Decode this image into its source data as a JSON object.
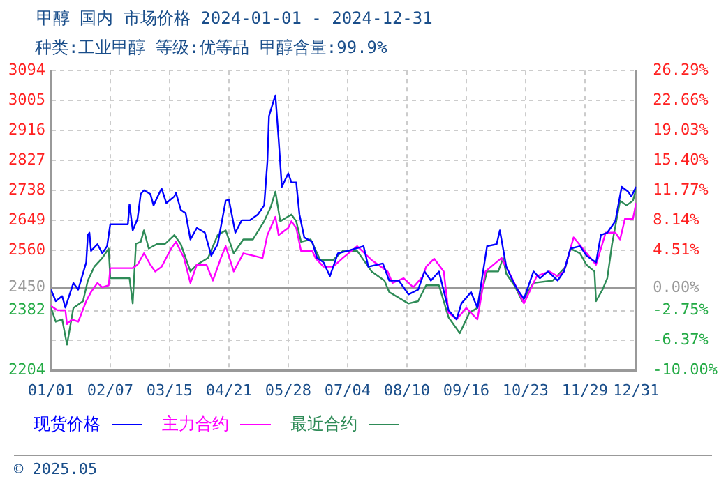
{
  "chart_data": {
    "type": "line",
    "title": "甲醇 国内 市场价格 2024-01-01 - 2024-12-31",
    "subtitle": "种类:工业甲醇 等级:优等品 甲醇含量:99.9%",
    "annotations": [
      "© 2025.05"
    ],
    "xlim": [
      "2024-01-01",
      "2024-12-31"
    ],
    "xticks": [
      {
        "value": "2024-01-01",
        "label": "01/01"
      },
      {
        "value": "2024-02-07",
        "label": "02/07"
      },
      {
        "value": "2024-03-15",
        "label": "03/15"
      },
      {
        "value": "2024-04-21",
        "label": "04/21"
      },
      {
        "value": "2024-05-28",
        "label": "05/28"
      },
      {
        "value": "2024-07-04",
        "label": "07/04"
      },
      {
        "value": "2024-08-10",
        "label": "08/10"
      },
      {
        "value": "2024-09-16",
        "label": "09/16"
      },
      {
        "value": "2024-10-23",
        "label": "10/23"
      },
      {
        "value": "2024-11-29",
        "label": "11/29"
      },
      {
        "value": "2024-12-31",
        "label": "12/31"
      }
    ],
    "ylim": [
      2204,
      3094
    ],
    "yticks": [
      2204,
      {
        "value": 2294,
        "label": null
      },
      2382,
      2450,
      2560,
      2649,
      2738,
      2827,
      2916,
      3005,
      3094
    ],
    "y2lim": [
      -10,
      26.29
    ],
    "y2ticks": [
      {
        "value": -10,
        "label": "-10.00%"
      },
      {
        "value": -6.37,
        "label": "-6.37%"
      },
      {
        "value": -2.75,
        "label": "-2.75%"
      },
      {
        "value": 0,
        "label": "0.00%"
      },
      {
        "value": 4.51,
        "label": "4.51%"
      },
      {
        "value": 8.14,
        "label": "8.14%"
      },
      {
        "value": 11.77,
        "label": "11.77%"
      },
      {
        "value": 15.4,
        "label": "15.40%"
      },
      {
        "value": 19.03,
        "label": "19.03%"
      },
      {
        "value": 22.66,
        "label": "22.66%"
      },
      {
        "value": 26.29,
        "label": "26.29%"
      }
    ],
    "ref_lines": [
      {
        "axis": "y",
        "value": 2450,
        "color": "#999999"
      }
    ],
    "grid": true,
    "legend": "bottom",
    "marker": "none",
    "series": [
      {
        "name": "现货价格",
        "color": "#0000ff",
        "x": [
          "2024-01-01",
          "2024-01-04",
          "2024-01-08",
          "2024-01-10",
          "2024-01-15",
          "2024-01-18",
          "2024-01-23",
          "2024-01-24",
          "2024-01-25",
          "2024-01-26",
          "2024-01-30",
          "2024-02-02",
          "2024-02-05",
          "2024-02-07",
          "2024-02-18",
          "2024-02-19",
          "2024-02-21",
          "2024-02-24",
          "2024-02-26",
          "2024-02-28",
          "2024-03-03",
          "2024-03-05",
          "2024-03-07",
          "2024-03-10",
          "2024-03-13",
          "2024-03-18",
          "2024-03-19",
          "2024-03-22",
          "2024-03-25",
          "2024-03-28",
          "2024-04-01",
          "2024-04-06",
          "2024-04-10",
          "2024-04-14",
          "2024-04-19",
          "2024-04-21",
          "2024-04-25",
          "2024-04-29",
          "2024-05-04",
          "2024-05-09",
          "2024-05-13",
          "2024-05-15",
          "2024-05-16",
          "2024-05-19",
          "2024-05-20",
          "2024-05-22",
          "2024-05-24",
          "2024-05-28",
          "2024-05-30",
          "2024-06-02",
          "2024-06-04",
          "2024-06-07",
          "2024-06-12",
          "2024-06-15",
          "2024-06-19",
          "2024-06-23",
          "2024-06-28",
          "2024-07-04",
          "2024-07-14",
          "2024-07-17",
          "2024-07-26",
          "2024-07-30",
          "2024-08-05",
          "2024-08-11",
          "2024-08-17",
          "2024-08-21",
          "2024-08-25",
          "2024-08-30",
          "2024-09-05",
          "2024-09-10",
          "2024-09-13",
          "2024-09-19",
          "2024-09-23",
          "2024-09-29",
          "2024-10-05",
          "2024-10-07",
          "2024-10-11",
          "2024-10-15",
          "2024-10-18",
          "2024-10-22",
          "2024-10-28",
          "2024-11-01",
          "2024-11-06",
          "2024-11-12",
          "2024-11-16",
          "2024-11-20",
          "2024-11-26",
          "2024-11-30",
          "2024-12-06",
          "2024-12-09",
          "2024-12-13",
          "2024-12-18",
          "2024-12-22",
          "2024-12-26",
          "2024-12-28",
          "2024-12-31"
        ],
        "values": [
          2444,
          2410,
          2425,
          2391,
          2464,
          2444,
          2525,
          2606,
          2613,
          2559,
          2579,
          2552,
          2573,
          2638,
          2638,
          2697,
          2620,
          2654,
          2728,
          2739,
          2728,
          2694,
          2715,
          2744,
          2701,
          2721,
          2731,
          2681,
          2671,
          2593,
          2627,
          2613,
          2545,
          2579,
          2708,
          2711,
          2613,
          2650,
          2650,
          2667,
          2694,
          2823,
          2959,
          3006,
          3020,
          2891,
          2749,
          2789,
          2762,
          2762,
          2667,
          2599,
          2586,
          2538,
          2525,
          2484,
          2552,
          2559,
          2573,
          2512,
          2522,
          2471,
          2471,
          2430,
          2444,
          2498,
          2471,
          2498,
          2383,
          2356,
          2403,
          2437,
          2390,
          2573,
          2579,
          2620,
          2512,
          2471,
          2444,
          2417,
          2498,
          2478,
          2498,
          2471,
          2498,
          2566,
          2573,
          2545,
          2525,
          2606,
          2613,
          2647,
          2749,
          2735,
          2721,
          2749
        ]
      },
      {
        "name": "主力合约",
        "color": "#ff00ff",
        "x": [
          "2024-01-01",
          "2024-01-05",
          "2024-01-10",
          "2024-01-11",
          "2024-01-14",
          "2024-01-18",
          "2024-01-23",
          "2024-01-26",
          "2024-01-30",
          "2024-02-02",
          "2024-02-06",
          "2024-02-07",
          "2024-02-21",
          "2024-02-24",
          "2024-02-28",
          "2024-03-03",
          "2024-03-06",
          "2024-03-10",
          "2024-03-16",
          "2024-03-19",
          "2024-03-24",
          "2024-03-28",
          "2024-04-01",
          "2024-04-07",
          "2024-04-11",
          "2024-04-16",
          "2024-04-19",
          "2024-04-24",
          "2024-04-30",
          "2024-05-06",
          "2024-05-12",
          "2024-05-15",
          "2024-05-20",
          "2024-05-22",
          "2024-05-28",
          "2024-05-30",
          "2024-06-02",
          "2024-06-05",
          "2024-06-12",
          "2024-06-14",
          "2024-06-19",
          "2024-06-25",
          "2024-07-01",
          "2024-07-10",
          "2024-07-19",
          "2024-07-29",
          "2024-08-01",
          "2024-08-08",
          "2024-08-14",
          "2024-08-20",
          "2024-08-22",
          "2024-08-27",
          "2024-09-02",
          "2024-09-05",
          "2024-09-10",
          "2024-09-16",
          "2024-09-23",
          "2024-09-28",
          "2024-10-08",
          "2024-10-14",
          "2024-10-18",
          "2024-10-22",
          "2024-10-30",
          "2024-11-07",
          "2024-11-12",
          "2024-11-16",
          "2024-11-22",
          "2024-11-29",
          "2024-12-06",
          "2024-12-12",
          "2024-12-18",
          "2024-12-21",
          "2024-12-24",
          "2024-12-29",
          "2024-12-31"
        ],
        "values": [
          2396,
          2383,
          2383,
          2342,
          2356,
          2349,
          2410,
          2437,
          2464,
          2451,
          2457,
          2508,
          2508,
          2518,
          2552,
          2518,
          2498,
          2512,
          2566,
          2586,
          2538,
          2464,
          2518,
          2518,
          2471,
          2538,
          2573,
          2498,
          2552,
          2545,
          2538,
          2606,
          2660,
          2606,
          2627,
          2647,
          2627,
          2559,
          2559,
          2538,
          2512,
          2512,
          2538,
          2573,
          2532,
          2498,
          2464,
          2478,
          2451,
          2484,
          2512,
          2536,
          2498,
          2376,
          2356,
          2390,
          2356,
          2498,
          2538,
          2484,
          2444,
          2403,
          2484,
          2498,
          2484,
          2498,
          2599,
          2559,
          2518,
          2613,
          2613,
          2593,
          2654,
          2654,
          2701
        ]
      },
      {
        "name": "最近合约",
        "color": "#2e8b57",
        "x": [
          "2024-01-01",
          "2024-01-04",
          "2024-01-08",
          "2024-01-11",
          "2024-01-13",
          "2024-01-15",
          "2024-01-21",
          "2024-01-24",
          "2024-01-28",
          "2024-02-02",
          "2024-02-06",
          "2024-02-07",
          "2024-02-19",
          "2024-02-21",
          "2024-02-23",
          "2024-02-26",
          "2024-02-28",
          "2024-03-02",
          "2024-03-07",
          "2024-03-12",
          "2024-03-18",
          "2024-03-22",
          "2024-03-28",
          "2024-04-01",
          "2024-04-08",
          "2024-04-14",
          "2024-04-19",
          "2024-04-24",
          "2024-04-30",
          "2024-05-06",
          "2024-05-13",
          "2024-05-17",
          "2024-05-20",
          "2024-05-23",
          "2024-05-30",
          "2024-06-02",
          "2024-06-05",
          "2024-06-11",
          "2024-06-17",
          "2024-06-25",
          "2024-07-01",
          "2024-07-10",
          "2024-07-19",
          "2024-07-27",
          "2024-07-30",
          "2024-08-11",
          "2024-08-17",
          "2024-08-22",
          "2024-08-30",
          "2024-09-05",
          "2024-09-12",
          "2024-09-18",
          "2024-09-23",
          "2024-09-29",
          "2024-10-06",
          "2024-10-09",
          "2024-10-11",
          "2024-10-16",
          "2024-10-21",
          "2024-10-28",
          "2024-11-09",
          "2024-11-17",
          "2024-11-20",
          "2024-11-26",
          "2024-11-30",
          "2024-12-05",
          "2024-12-06",
          "2024-12-10",
          "2024-12-13",
          "2024-12-16",
          "2024-12-21",
          "2024-12-25",
          "2024-12-29",
          "2024-12-31"
        ],
        "values": [
          2390,
          2349,
          2356,
          2281,
          2335,
          2390,
          2410,
          2471,
          2512,
          2538,
          2566,
          2478,
          2478,
          2403,
          2580,
          2586,
          2620,
          2566,
          2579,
          2579,
          2606,
          2579,
          2498,
          2518,
          2538,
          2606,
          2620,
          2552,
          2593,
          2593,
          2647,
          2688,
          2735,
          2647,
          2667,
          2647,
          2586,
          2593,
          2532,
          2532,
          2559,
          2559,
          2498,
          2471,
          2437,
          2403,
          2410,
          2457,
          2457,
          2362,
          2315,
          2376,
          2390,
          2498,
          2498,
          2538,
          2491,
          2457,
          2410,
          2464,
          2471,
          2512,
          2566,
          2552,
          2518,
          2498,
          2410,
          2444,
          2478,
          2580,
          2708,
          2694,
          2708,
          2742
        ]
      }
    ]
  }
}
